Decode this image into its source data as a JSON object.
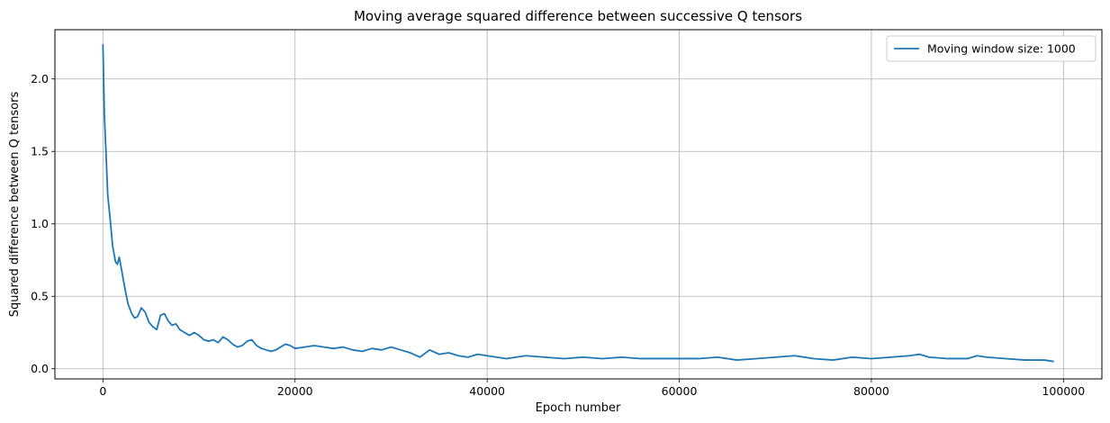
{
  "chart_data": {
    "type": "line",
    "title": "Moving average squared difference between successive Q tensors",
    "xlabel": "Epoch number",
    "ylabel": "Squared difference between Q tensors",
    "xlim": [
      -5000,
      104000
    ],
    "ylim": [
      -0.07,
      2.34
    ],
    "x_ticks": [
      0,
      20000,
      40000,
      60000,
      80000,
      100000
    ],
    "y_ticks": [
      0.0,
      0.5,
      1.0,
      1.5,
      2.0
    ],
    "grid": true,
    "legend_position": "top-right",
    "series": [
      {
        "name": "Moving window size: 1000",
        "color": "#1f77b4",
        "x": [
          0,
          150,
          300,
          500,
          800,
          1000,
          1300,
          1500,
          1700,
          2000,
          2300,
          2600,
          3000,
          3300,
          3600,
          4000,
          4400,
          4800,
          5200,
          5600,
          6000,
          6400,
          6800,
          7200,
          7600,
          8000,
          8500,
          9000,
          9500,
          10000,
          10500,
          11000,
          11500,
          12000,
          12500,
          13000,
          13500,
          14000,
          14500,
          15000,
          15500,
          16000,
          16500,
          17000,
          17500,
          18000,
          18500,
          19000,
          19500,
          20000,
          21000,
          22000,
          23000,
          24000,
          25000,
          26000,
          27000,
          28000,
          29000,
          30000,
          31000,
          32000,
          33000,
          34000,
          35000,
          36000,
          37000,
          38000,
          39000,
          40000,
          42000,
          44000,
          46000,
          48000,
          50000,
          52000,
          54000,
          56000,
          58000,
          60000,
          62000,
          64000,
          66000,
          68000,
          70000,
          72000,
          74000,
          76000,
          78000,
          80000,
          82000,
          84000,
          85000,
          86000,
          88000,
          90000,
          91000,
          92000,
          94000,
          96000,
          98000,
          99000
        ],
        "y": [
          2.24,
          1.75,
          1.52,
          1.2,
          1.0,
          0.85,
          0.74,
          0.72,
          0.77,
          0.66,
          0.55,
          0.45,
          0.38,
          0.35,
          0.36,
          0.42,
          0.39,
          0.32,
          0.29,
          0.27,
          0.37,
          0.38,
          0.33,
          0.3,
          0.31,
          0.27,
          0.25,
          0.23,
          0.25,
          0.23,
          0.2,
          0.19,
          0.2,
          0.18,
          0.22,
          0.2,
          0.17,
          0.15,
          0.16,
          0.19,
          0.2,
          0.16,
          0.14,
          0.13,
          0.12,
          0.13,
          0.15,
          0.17,
          0.16,
          0.14,
          0.15,
          0.16,
          0.15,
          0.14,
          0.15,
          0.13,
          0.12,
          0.14,
          0.13,
          0.15,
          0.13,
          0.11,
          0.08,
          0.13,
          0.1,
          0.11,
          0.09,
          0.08,
          0.1,
          0.09,
          0.07,
          0.09,
          0.08,
          0.07,
          0.08,
          0.07,
          0.08,
          0.07,
          0.07,
          0.07,
          0.07,
          0.08,
          0.06,
          0.07,
          0.08,
          0.09,
          0.07,
          0.06,
          0.08,
          0.07,
          0.08,
          0.09,
          0.1,
          0.08,
          0.07,
          0.07,
          0.09,
          0.08,
          0.07,
          0.06,
          0.06,
          0.05
        ]
      }
    ]
  }
}
